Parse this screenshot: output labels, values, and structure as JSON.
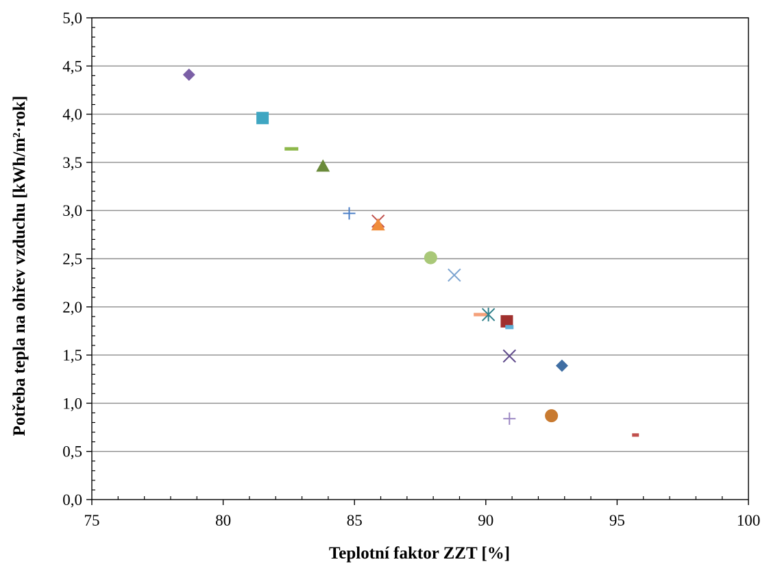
{
  "chart_data": {
    "type": "scatter",
    "title": "",
    "xlabel": "Teplotní faktor ZZT [%]",
    "ylabel": "Potřeba tepla na ohřev  vzduchu [kWh/m²·rok]",
    "xlim": [
      75,
      100
    ],
    "ylim": [
      0,
      5
    ],
    "x_ticks": [
      "75",
      "80",
      "85",
      "90",
      "95",
      "100"
    ],
    "y_ticks": [
      "0,0",
      "0,5",
      "1,0",
      "1,5",
      "2,0",
      "2,5",
      "3,0",
      "3,5",
      "4,0",
      "4,5",
      "5,0"
    ],
    "grid": "horizontal",
    "legend": "none",
    "points": [
      {
        "x": 78.7,
        "y": 4.41,
        "marker": "diamond",
        "color": "#7b5fa6"
      },
      {
        "x": 81.5,
        "y": 3.96,
        "marker": "square",
        "color": "#3fa6c2"
      },
      {
        "x": 82.6,
        "y": 3.64,
        "marker": "dash",
        "color": "#8db84a"
      },
      {
        "x": 83.8,
        "y": 3.46,
        "marker": "triangle",
        "color": "#6a8a3a"
      },
      {
        "x": 84.8,
        "y": 2.97,
        "marker": "plus",
        "color": "#4a7ec7"
      },
      {
        "x": 85.9,
        "y": 2.89,
        "marker": "x",
        "color": "#c0504d"
      },
      {
        "x": 85.9,
        "y": 2.85,
        "marker": "triangle",
        "color": "#f08c3a"
      },
      {
        "x": 87.9,
        "y": 2.51,
        "marker": "circle",
        "color": "#a9c878"
      },
      {
        "x": 88.8,
        "y": 2.33,
        "marker": "x",
        "color": "#7ba3d0"
      },
      {
        "x": 89.8,
        "y": 1.92,
        "marker": "dash",
        "color": "#f4a07a"
      },
      {
        "x": 90.1,
        "y": 1.92,
        "marker": "star",
        "color": "#2e7f8a"
      },
      {
        "x": 90.8,
        "y": 1.85,
        "marker": "square",
        "color": "#a0302e"
      },
      {
        "x": 90.9,
        "y": 1.79,
        "marker": "small-square",
        "color": "#5fb0d6"
      },
      {
        "x": 90.9,
        "y": 1.49,
        "marker": "x",
        "color": "#5f4a8b"
      },
      {
        "x": 92.9,
        "y": 1.39,
        "marker": "diamond",
        "color": "#3f6ea3"
      },
      {
        "x": 92.5,
        "y": 0.87,
        "marker": "circle",
        "color": "#c87a30"
      },
      {
        "x": 90.9,
        "y": 0.84,
        "marker": "plus",
        "color": "#9b86c2"
      },
      {
        "x": 95.7,
        "y": 0.67,
        "marker": "small-dash",
        "color": "#c0504d"
      }
    ]
  }
}
